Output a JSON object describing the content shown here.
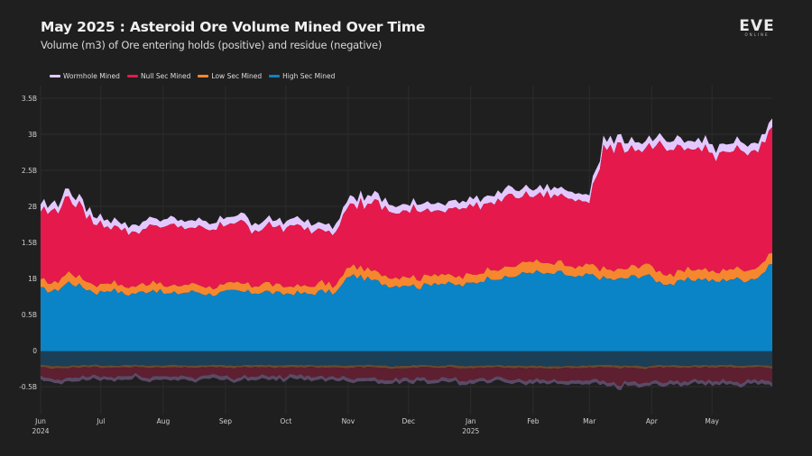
{
  "header": {
    "title": "May 2025 : Asteroid Ore Volume Mined Over Time",
    "subtitle": "Volume (m3) of Ore entering holds (positive) and residue (negative)"
  },
  "logo": {
    "main": "EVE",
    "sub": "ONLINE"
  },
  "chart_data": {
    "type": "area",
    "stacked": true,
    "title": "May 2025 : Asteroid Ore Volume Mined Over Time",
    "subtitle": "Volume (m3) of Ore entering holds (positive) and residue (negative)",
    "xlabel": "",
    "ylabel": "",
    "x_range": [
      "2024-06-01",
      "2025-05-31"
    ],
    "ylim": [
      -0.85,
      3.5
    ],
    "y_unit": "B m3",
    "y_ticks": [
      {
        "value": -0.5,
        "label": "-0.5B"
      },
      {
        "value": 0,
        "label": "0"
      },
      {
        "value": 0.5,
        "label": "0.5B"
      },
      {
        "value": 1,
        "label": "1B"
      },
      {
        "value": 1.5,
        "label": "1.5B"
      },
      {
        "value": 2,
        "label": "2B"
      },
      {
        "value": 2.5,
        "label": "2.5B"
      },
      {
        "value": 3,
        "label": "3B"
      },
      {
        "value": 3.5,
        "label": "3.5B"
      }
    ],
    "x_ticks": [
      {
        "value": 0,
        "label": "Jun",
        "sub": "2024"
      },
      {
        "value": 30,
        "label": "Jul",
        "sub": ""
      },
      {
        "value": 61,
        "label": "Aug",
        "sub": ""
      },
      {
        "value": 92,
        "label": "Sep",
        "sub": ""
      },
      {
        "value": 122,
        "label": "Oct",
        "sub": ""
      },
      {
        "value": 153,
        "label": "Nov",
        "sub": ""
      },
      {
        "value": 183,
        "label": "Dec",
        "sub": ""
      },
      {
        "value": 214,
        "label": "Jan",
        "sub": "2025"
      },
      {
        "value": 245,
        "label": "Feb",
        "sub": ""
      },
      {
        "value": 273,
        "label": "Mar",
        "sub": ""
      },
      {
        "value": 304,
        "label": "Apr",
        "sub": ""
      },
      {
        "value": 334,
        "label": "May",
        "sub": ""
      }
    ],
    "x_max_day": 364,
    "grid": true,
    "legend_position": "top-left",
    "x_days": [
      0,
      7,
      14,
      21,
      28,
      35,
      42,
      49,
      56,
      63,
      70,
      77,
      84,
      91,
      98,
      105,
      112,
      119,
      126,
      133,
      140,
      147,
      154,
      161,
      168,
      175,
      182,
      189,
      196,
      203,
      210,
      217,
      224,
      231,
      238,
      245,
      252,
      259,
      266,
      273,
      280,
      287,
      294,
      301,
      308,
      315,
      322,
      329,
      336,
      343,
      350,
      357,
      364
    ],
    "series": [
      {
        "name": "High Sec Mined",
        "color": "#0a84c6",
        "values": [
          0.85,
          0.82,
          0.95,
          0.88,
          0.8,
          0.85,
          0.78,
          0.8,
          0.85,
          0.78,
          0.8,
          0.82,
          0.78,
          0.8,
          0.82,
          0.8,
          0.82,
          0.78,
          0.8,
          0.78,
          0.82,
          0.8,
          1.05,
          1.0,
          0.95,
          0.9,
          0.92,
          0.88,
          0.95,
          0.92,
          0.9,
          0.95,
          1.02,
          1.0,
          1.05,
          1.1,
          1.05,
          1.08,
          1.0,
          1.05,
          1.0,
          0.98,
          1.02,
          1.05,
          0.95,
          0.92,
          0.98,
          1.0,
          0.95,
          1.0,
          0.98,
          1.02,
          1.2
        ]
      },
      {
        "name": "Low Sec Mined",
        "color": "#f5872f",
        "values": [
          0.12,
          0.12,
          0.14,
          0.12,
          0.1,
          0.12,
          0.1,
          0.1,
          0.12,
          0.1,
          0.1,
          0.12,
          0.1,
          0.1,
          0.12,
          0.1,
          0.12,
          0.1,
          0.1,
          0.1,
          0.12,
          0.1,
          0.14,
          0.13,
          0.12,
          0.12,
          0.12,
          0.12,
          0.13,
          0.12,
          0.12,
          0.12,
          0.13,
          0.14,
          0.14,
          0.15,
          0.14,
          0.14,
          0.13,
          0.14,
          0.13,
          0.13,
          0.14,
          0.15,
          0.14,
          0.13,
          0.14,
          0.14,
          0.13,
          0.14,
          0.14,
          0.14,
          0.15
        ]
      },
      {
        "name": "Null Sec Mined",
        "color": "#e5194b",
        "values": [
          0.95,
          1.0,
          1.05,
          0.95,
          0.85,
          0.8,
          0.78,
          0.75,
          0.8,
          0.82,
          0.8,
          0.78,
          0.8,
          0.82,
          0.85,
          0.8,
          0.78,
          0.8,
          0.82,
          0.8,
          0.75,
          0.78,
          0.85,
          0.9,
          0.95,
          0.92,
          0.9,
          0.95,
          0.9,
          0.92,
          0.95,
          0.95,
          0.92,
          0.98,
          0.95,
          0.9,
          0.95,
          0.92,
          0.95,
          0.9,
          1.65,
          1.7,
          1.65,
          1.6,
          1.75,
          1.7,
          1.65,
          1.7,
          1.6,
          1.65,
          1.62,
          1.6,
          1.75
        ]
      },
      {
        "name": "Wormhole Mined",
        "color": "#e2c8ff",
        "values": [
          0.1,
          0.1,
          0.11,
          0.1,
          0.1,
          0.1,
          0.09,
          0.1,
          0.1,
          0.1,
          0.1,
          0.1,
          0.1,
          0.1,
          0.1,
          0.1,
          0.1,
          0.1,
          0.1,
          0.1,
          0.1,
          0.1,
          0.11,
          0.11,
          0.1,
          0.1,
          0.1,
          0.1,
          0.1,
          0.1,
          0.1,
          0.1,
          0.1,
          0.11,
          0.1,
          0.1,
          0.1,
          0.1,
          0.1,
          0.1,
          0.12,
          0.12,
          0.12,
          0.11,
          0.12,
          0.12,
          0.11,
          0.12,
          0.11,
          0.11,
          0.11,
          0.11,
          0.12
        ]
      }
    ],
    "residue_series": [
      {
        "name": "High Sec Residue",
        "color": "#1b3f56",
        "values": [
          -0.2,
          -0.22,
          -0.21,
          -0.2,
          -0.2,
          -0.21,
          -0.2,
          -0.2,
          -0.21,
          -0.2,
          -0.2,
          -0.21,
          -0.2,
          -0.2,
          -0.21,
          -0.2,
          -0.2,
          -0.21,
          -0.2,
          -0.2,
          -0.21,
          -0.2,
          -0.21,
          -0.2,
          -0.2,
          -0.22,
          -0.21,
          -0.2,
          -0.21,
          -0.2,
          -0.21,
          -0.22,
          -0.2,
          -0.21,
          -0.21,
          -0.21,
          -0.22,
          -0.22,
          -0.21,
          -0.21,
          -0.2,
          -0.21,
          -0.21,
          -0.22,
          -0.2,
          -0.2,
          -0.21,
          -0.2,
          -0.2,
          -0.2,
          -0.21,
          -0.2,
          -0.22
        ]
      },
      {
        "name": "Low Sec Residue",
        "color": "#6b4a2e",
        "values": [
          -0.03,
          -0.03,
          -0.03,
          -0.03,
          -0.03,
          -0.03,
          -0.03,
          -0.03,
          -0.03,
          -0.03,
          -0.03,
          -0.03,
          -0.03,
          -0.03,
          -0.03,
          -0.03,
          -0.03,
          -0.03,
          -0.03,
          -0.03,
          -0.03,
          -0.03,
          -0.03,
          -0.03,
          -0.03,
          -0.03,
          -0.03,
          -0.03,
          -0.03,
          -0.03,
          -0.03,
          -0.03,
          -0.03,
          -0.03,
          -0.03,
          -0.03,
          -0.03,
          -0.03,
          -0.03,
          -0.03,
          -0.03,
          -0.03,
          -0.03,
          -0.03,
          -0.03,
          -0.03,
          -0.03,
          -0.03,
          -0.03,
          -0.03,
          -0.03,
          -0.03,
          -0.03
        ]
      },
      {
        "name": "Null Sec Residue",
        "color": "#5e1f30",
        "values": [
          -0.14,
          -0.16,
          -0.15,
          -0.13,
          -0.12,
          -0.13,
          -0.12,
          -0.12,
          -0.13,
          -0.12,
          -0.12,
          -0.13,
          -0.12,
          -0.12,
          -0.13,
          -0.12,
          -0.12,
          -0.13,
          -0.12,
          -0.12,
          -0.13,
          -0.12,
          -0.14,
          -0.14,
          -0.15,
          -0.15,
          -0.14,
          -0.16,
          -0.15,
          -0.15,
          -0.16,
          -0.17,
          -0.16,
          -0.15,
          -0.16,
          -0.16,
          -0.16,
          -0.17,
          -0.16,
          -0.16,
          -0.2,
          -0.22,
          -0.2,
          -0.19,
          -0.21,
          -0.2,
          -0.19,
          -0.2,
          -0.18,
          -0.2,
          -0.19,
          -0.19,
          -0.2
        ]
      },
      {
        "name": "Wormhole Residue",
        "color": "#5a4a66",
        "values": [
          -0.05,
          -0.05,
          -0.05,
          -0.05,
          -0.05,
          -0.05,
          -0.05,
          -0.05,
          -0.05,
          -0.05,
          -0.05,
          -0.05,
          -0.05,
          -0.05,
          -0.05,
          -0.05,
          -0.05,
          -0.05,
          -0.05,
          -0.05,
          -0.05,
          -0.05,
          -0.05,
          -0.05,
          -0.05,
          -0.05,
          -0.05,
          -0.05,
          -0.05,
          -0.05,
          -0.05,
          -0.05,
          -0.05,
          -0.05,
          -0.05,
          -0.05,
          -0.05,
          -0.05,
          -0.05,
          -0.05,
          -0.05,
          -0.05,
          -0.05,
          -0.05,
          -0.05,
          -0.05,
          -0.05,
          -0.05,
          -0.05,
          -0.05,
          -0.05,
          -0.05,
          -0.05
        ]
      }
    ],
    "legend": [
      {
        "label": "Wormhole Mined",
        "color": "#e2c8ff"
      },
      {
        "label": "Null Sec Mined",
        "color": "#e5194b"
      },
      {
        "label": "Low Sec Mined",
        "color": "#f5872f"
      },
      {
        "label": "High Sec Mined",
        "color": "#0a84c6"
      }
    ]
  }
}
